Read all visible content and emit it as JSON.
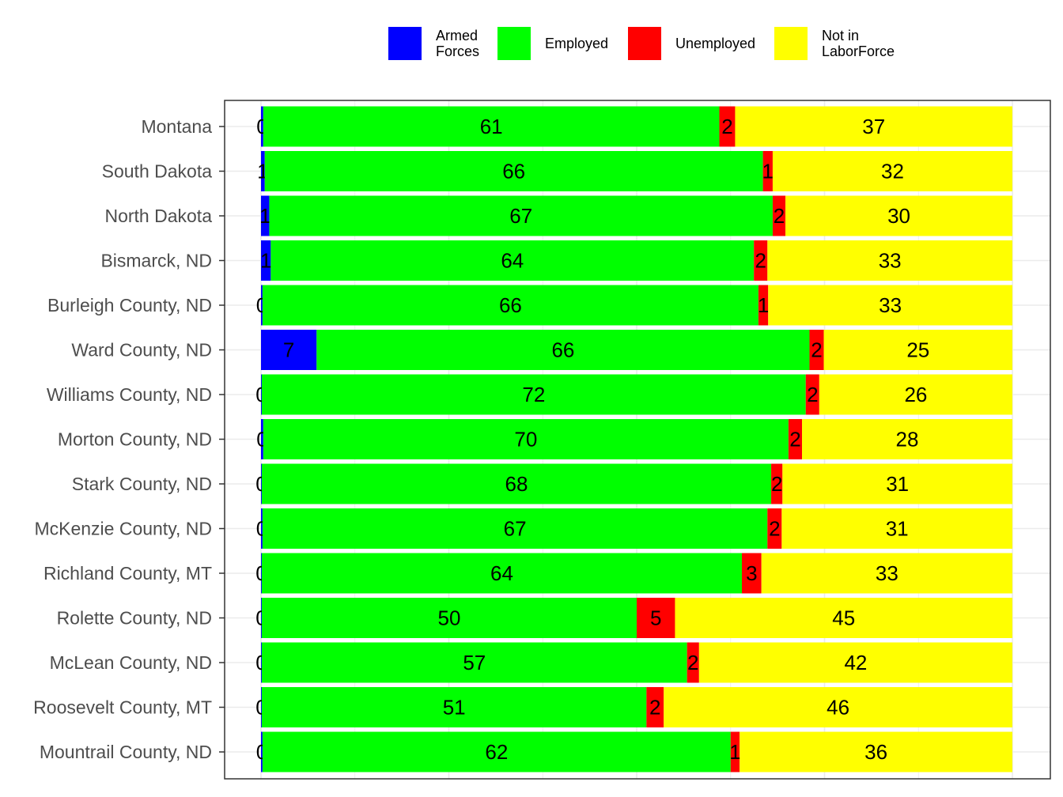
{
  "chart_data": {
    "type": "bar",
    "orientation": "horizontal",
    "stacked": true,
    "percent_stacked": true,
    "title": "",
    "xlabel": "",
    "ylabel": "",
    "xlim": [
      0,
      100
    ],
    "grid": true,
    "legend": {
      "position": "top"
    },
    "categories": [
      "Montana",
      "South Dakota",
      "North Dakota",
      "Bismarck, ND",
      "Burleigh County, ND",
      "Ward County, ND",
      "Williams County, ND",
      "Morton County, ND",
      "Stark County, ND",
      "McKenzie County, ND",
      "Richland County, MT",
      "Rolette County, ND",
      "McLean County, ND",
      "Roosevelt County, MT",
      "Mountrail County, ND"
    ],
    "series": [
      {
        "name": "Armed Forces",
        "legend_lines": [
          "Armed",
          "Forces"
        ],
        "color": "#0000ff",
        "values": [
          0.3,
          0.5,
          1.1,
          1.3,
          0.2,
          7.4,
          0.1,
          0.3,
          0.1,
          0.2,
          0.1,
          0.1,
          0.1,
          0.1,
          0.2
        ],
        "labels": [
          "0",
          "1",
          "1",
          "1",
          "0",
          "7",
          "0",
          "0",
          "0",
          "0",
          "0",
          "0",
          "0",
          "0",
          "0"
        ]
      },
      {
        "name": "Employed",
        "legend_lines": [
          "Employed"
        ],
        "color": "#00ff00",
        "values": [
          60.7,
          66.3,
          67.0,
          64.3,
          66.0,
          65.6,
          72.4,
          69.9,
          67.8,
          67.2,
          63.9,
          49.9,
          56.6,
          51.2,
          62.3
        ],
        "labels": [
          "61",
          "66",
          "67",
          "64",
          "66",
          "66",
          "72",
          "70",
          "68",
          "67",
          "64",
          "50",
          "57",
          "51",
          "62"
        ]
      },
      {
        "name": "Unemployed",
        "legend_lines": [
          "Unemployed"
        ],
        "color": "#ff0000",
        "values": [
          2.1,
          1.3,
          1.7,
          1.8,
          1.3,
          1.9,
          1.8,
          1.8,
          1.5,
          1.9,
          2.6,
          5.1,
          1.6,
          2.3,
          1.2
        ],
        "labels": [
          "2",
          "1",
          "2",
          "2",
          "1",
          "2",
          "2",
          "2",
          "2",
          "2",
          "3",
          "5",
          "2",
          "2",
          "1"
        ]
      },
      {
        "name": "Not in LaborForce",
        "legend_lines": [
          "Not in",
          "LaborForce"
        ],
        "color": "#ffff00",
        "values": [
          36.9,
          31.9,
          30.2,
          32.6,
          32.5,
          25.1,
          25.7,
          28.0,
          30.6,
          30.7,
          33.4,
          44.9,
          41.7,
          46.4,
          36.3
        ],
        "labels": [
          "37",
          "32",
          "30",
          "33",
          "33",
          "25",
          "26",
          "28",
          "31",
          "31",
          "33",
          "45",
          "42",
          "46",
          "36"
        ]
      }
    ]
  }
}
